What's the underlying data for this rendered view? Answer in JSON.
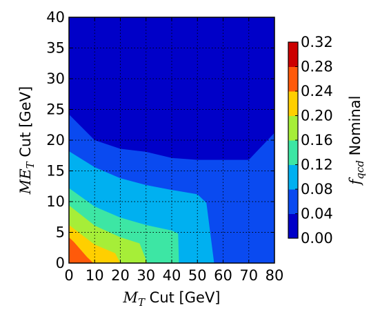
{
  "chart_data": {
    "type": "heatmap",
    "subtype": "filled-contour",
    "xlabel": {
      "symbol": "M",
      "sub": "T",
      "text": " Cut [GeV]"
    },
    "ylabel": {
      "symbol": "ME",
      "sub": "T",
      "text": " Cut [GeV]"
    },
    "colorbar_label": {
      "symbol": "f",
      "sub": "qcd",
      "text": " Nominal"
    },
    "xlim": [
      0,
      80
    ],
    "ylim": [
      0,
      40
    ],
    "xticks": [
      "0",
      "10",
      "20",
      "30",
      "40",
      "50",
      "60",
      "70",
      "80"
    ],
    "yticks": [
      "0",
      "5",
      "10",
      "15",
      "20",
      "25",
      "30",
      "35",
      "40"
    ],
    "grid": "dotted",
    "colorbar": {
      "levels": [
        0.0,
        0.04,
        0.08,
        0.12,
        0.16,
        0.2,
        0.24,
        0.28,
        0.32
      ],
      "tick_labels": [
        "0.00",
        "0.04",
        "0.08",
        "0.12",
        "0.16",
        "0.20",
        "0.24",
        "0.28",
        "0.32"
      ],
      "colors": [
        "#0000c8",
        "#0a4af0",
        "#00b0f0",
        "#3de6a4",
        "#a6ee38",
        "#ffcf00",
        "#ff5a0a",
        "#cc0000"
      ]
    },
    "contour_boundaries": [
      {
        "level": 0.04,
        "points": [
          [
            0,
            24.2
          ],
          [
            10,
            20
          ],
          [
            20,
            18.6
          ],
          [
            30,
            18.1
          ],
          [
            40,
            17.1
          ],
          [
            50,
            16.8
          ],
          [
            60,
            16.8
          ],
          [
            70,
            16.8
          ],
          [
            80,
            21.2
          ]
        ]
      },
      {
        "level": 0.08,
        "points": [
          [
            0,
            18.2
          ],
          [
            10,
            15.6
          ],
          [
            20,
            13.8
          ],
          [
            30,
            12.7
          ],
          [
            40,
            11.9
          ],
          [
            50,
            11.2
          ],
          [
            53.5,
            9.8
          ],
          [
            56.5,
            0
          ]
        ]
      },
      {
        "level": 0.12,
        "points": [
          [
            0,
            12.2
          ],
          [
            10,
            9.2
          ],
          [
            20,
            7.4
          ],
          [
            30,
            6.2
          ],
          [
            40,
            5.3
          ],
          [
            42.5,
            4.8
          ],
          [
            42.8,
            0
          ]
        ]
      },
      {
        "level": 0.16,
        "points": [
          [
            0,
            9.4
          ],
          [
            10,
            6.1
          ],
          [
            20,
            4.2
          ],
          [
            27.5,
            3.2
          ],
          [
            30.5,
            0
          ]
        ]
      },
      {
        "level": 0.2,
        "points": [
          [
            0,
            6.2
          ],
          [
            10,
            3.0
          ],
          [
            18,
            1.6
          ],
          [
            20,
            0
          ]
        ]
      },
      {
        "level": 0.24,
        "points": [
          [
            0,
            4.2
          ],
          [
            2,
            3.4
          ],
          [
            7,
            1.0
          ],
          [
            9.5,
            0
          ]
        ]
      }
    ]
  }
}
